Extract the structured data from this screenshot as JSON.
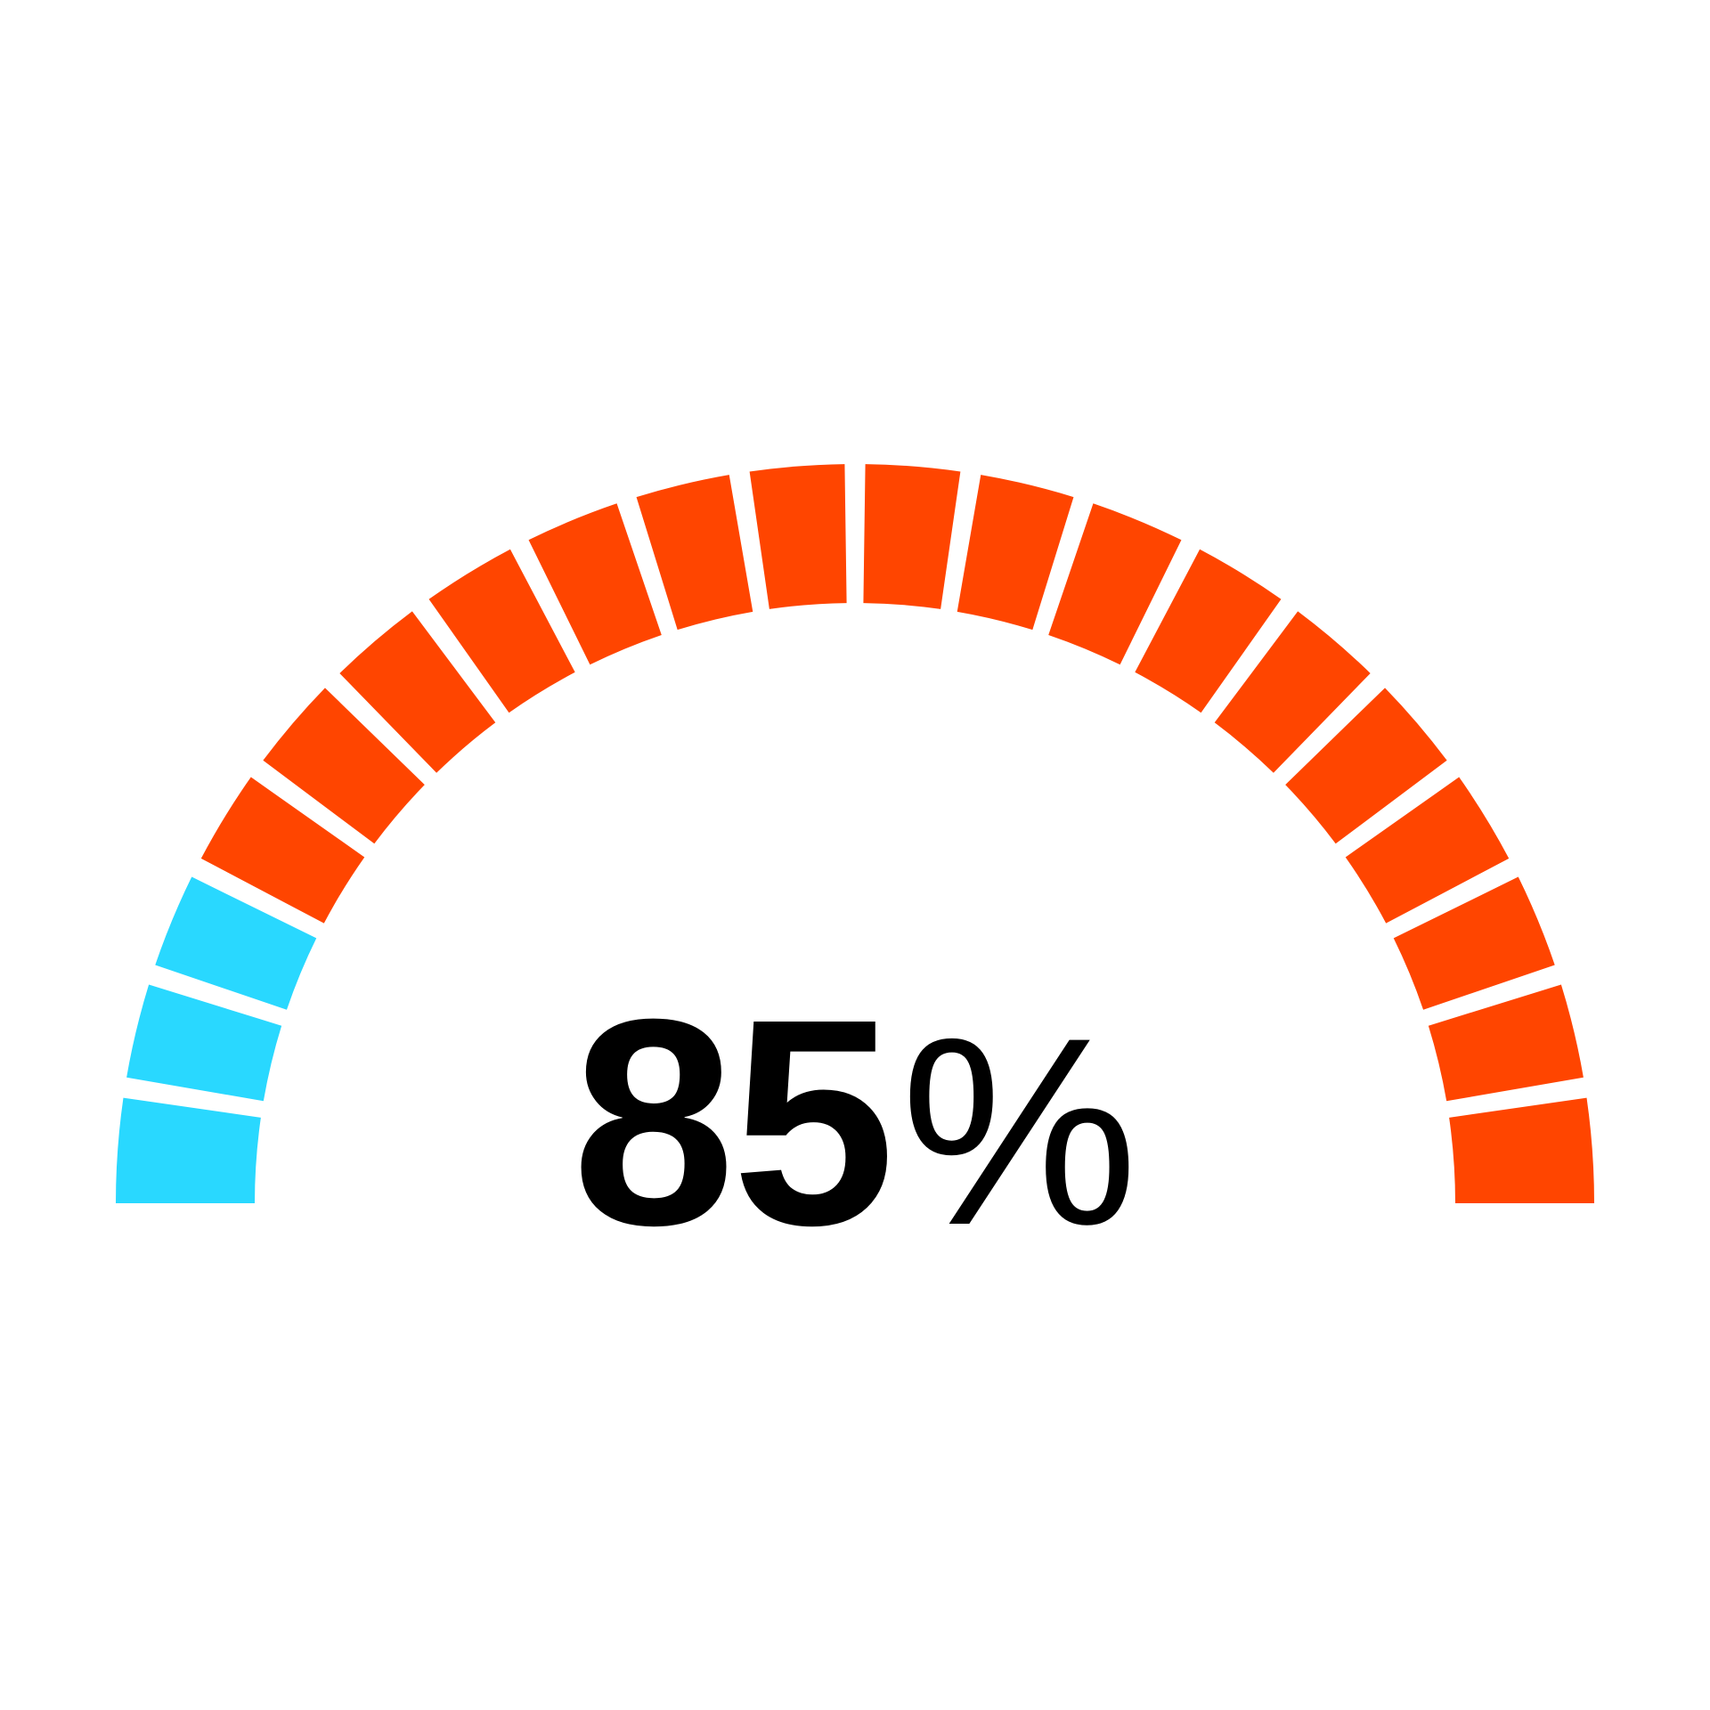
{
  "chart_data": {
    "type": "gauge",
    "value": 85,
    "unit": "%",
    "min": 0,
    "max": 100,
    "segments": 20,
    "filled_color": "#FF4500",
    "empty_color": "#29D8FF",
    "fill_direction": "from-right"
  },
  "display": {
    "value_text": "85",
    "unit_text": "%"
  }
}
